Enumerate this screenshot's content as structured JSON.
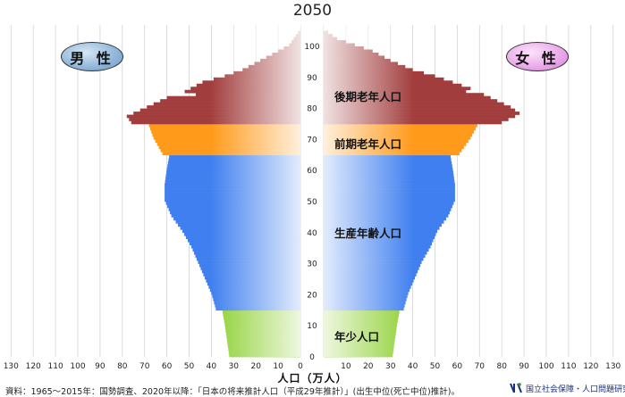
{
  "title": "2050",
  "labels": {
    "male": "男 性",
    "female": "女 性",
    "bands": {
      "elderly_late": "後期老年人口",
      "elderly_early": "前期老年人口",
      "working": "生産年齢人口",
      "young": "年少人口"
    },
    "xlabel": "人口（万人）",
    "source": "資料：1965～2015年：国勢調査、2020年以降：「日本の将来推計人口（平成29年推計）」(出生中位(死亡中位)推計)。",
    "logo": "国立社会保障・人口問題研究所"
  },
  "colors": {
    "young": "#8ccf2e",
    "working": "#3f7fef",
    "elderly_early": "#ff9a1a",
    "elderly_late": "#a23d3d",
    "inner": "#cff4ff"
  },
  "chart_data": {
    "type": "bar",
    "orientation": "horizontal-population-pyramid",
    "title": "2050",
    "xlabel": "人口（万人）",
    "x_ticks": [
      130,
      120,
      110,
      100,
      90,
      80,
      70,
      60,
      50,
      40,
      30,
      20,
      10,
      0,
      10,
      20,
      30,
      40,
      50,
      60,
      70,
      80,
      90,
      100,
      110,
      120,
      130
    ],
    "xlim": [
      0,
      130
    ],
    "age_ticks": [
      0,
      10,
      20,
      30,
      40,
      50,
      60,
      70,
      80,
      90,
      100
    ],
    "ylim": [
      0,
      105
    ],
    "bands": [
      {
        "name": "年少人口",
        "ages": [
          0,
          14
        ]
      },
      {
        "name": "生産年齢人口",
        "ages": [
          15,
          64
        ]
      },
      {
        "name": "前期老年人口",
        "ages": [
          65,
          74
        ]
      },
      {
        "name": "後期老年人口",
        "ages": [
          75,
          105
        ]
      }
    ],
    "series": [
      {
        "name": "男 性",
        "side": "left",
        "age_values": [
          [
            0,
            32
          ],
          [
            5,
            33
          ],
          [
            10,
            34
          ],
          [
            14,
            35
          ],
          [
            15,
            38
          ],
          [
            20,
            40
          ],
          [
            25,
            43
          ],
          [
            30,
            46
          ],
          [
            35,
            49
          ],
          [
            40,
            53
          ],
          [
            45,
            58
          ],
          [
            50,
            61
          ],
          [
            55,
            61
          ],
          [
            60,
            60
          ],
          [
            64,
            59
          ],
          [
            65,
            62
          ],
          [
            70,
            66
          ],
          [
            74,
            68
          ],
          [
            75,
            76
          ],
          [
            77,
            78
          ],
          [
            79,
            72
          ],
          [
            81,
            66
          ],
          [
            83,
            60
          ],
          [
            84,
            47
          ],
          [
            85,
            52
          ],
          [
            88,
            44
          ],
          [
            90,
            34
          ],
          [
            92,
            26
          ],
          [
            95,
            18
          ],
          [
            98,
            10
          ],
          [
            100,
            5
          ],
          [
            102,
            3
          ],
          [
            104,
            1
          ]
        ]
      },
      {
        "name": "女 性",
        "side": "right",
        "age_values": [
          [
            0,
            31
          ],
          [
            5,
            32
          ],
          [
            10,
            33
          ],
          [
            14,
            34
          ],
          [
            15,
            36
          ],
          [
            20,
            38
          ],
          [
            25,
            41
          ],
          [
            30,
            44
          ],
          [
            35,
            48
          ],
          [
            40,
            51
          ],
          [
            45,
            56
          ],
          [
            50,
            59
          ],
          [
            55,
            59
          ],
          [
            60,
            58
          ],
          [
            64,
            57
          ],
          [
            65,
            61
          ],
          [
            70,
            66
          ],
          [
            74,
            69
          ],
          [
            75,
            80
          ],
          [
            77,
            86
          ],
          [
            78,
            88
          ],
          [
            80,
            84
          ],
          [
            82,
            78
          ],
          [
            84,
            72
          ],
          [
            85,
            64
          ],
          [
            86,
            66
          ],
          [
            88,
            58
          ],
          [
            90,
            50
          ],
          [
            92,
            40
          ],
          [
            95,
            30
          ],
          [
            98,
            22
          ],
          [
            100,
            14
          ],
          [
            102,
            6
          ],
          [
            104,
            2
          ]
        ]
      }
    ]
  }
}
